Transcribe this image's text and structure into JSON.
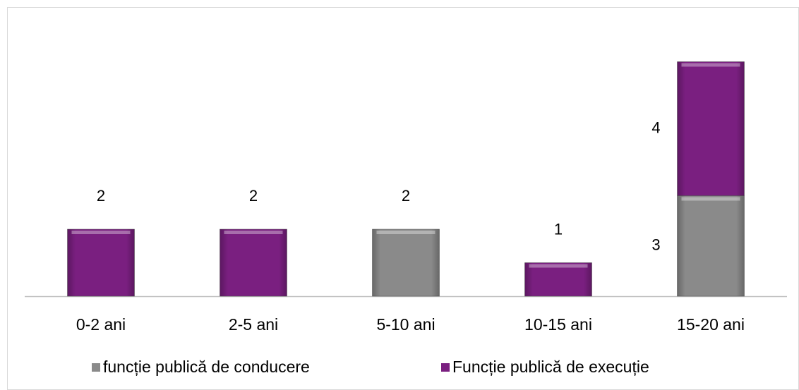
{
  "chart_data": {
    "type": "stacked_bar",
    "categories": [
      "0-2 ani",
      "2-5 ani",
      "5-10 ani",
      "10-15 ani",
      "15-20 ani"
    ],
    "series": [
      {
        "name": "funcție publică de conducere",
        "color": "#8a8a8a",
        "values": [
          null,
          null,
          2,
          null,
          3
        ]
      },
      {
        "name": "Funcție publică de execuție",
        "color": "#7a1f80",
        "values": [
          2,
          2,
          null,
          1,
          4
        ]
      }
    ],
    "legend": "bottom"
  }
}
